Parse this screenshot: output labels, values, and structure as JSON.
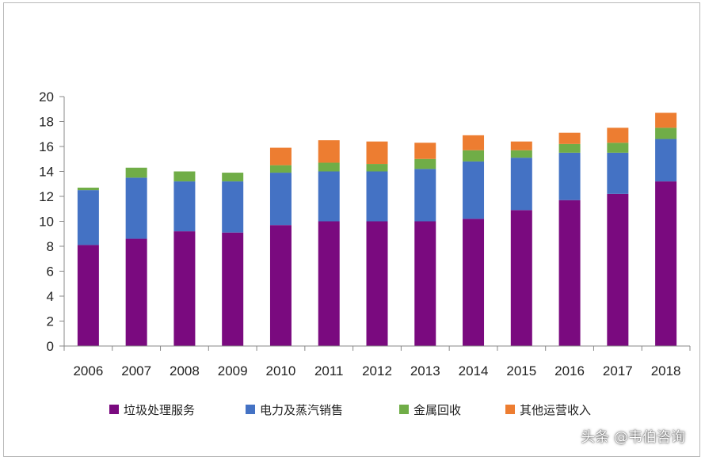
{
  "chart_data": {
    "type": "bar",
    "stacked": true,
    "categories": [
      "2006",
      "2007",
      "2008",
      "2009",
      "2010",
      "2011",
      "2012",
      "2013",
      "2014",
      "2015",
      "2016",
      "2017",
      "2018"
    ],
    "series": [
      {
        "name": "垃圾处理服务",
        "color": "#7a0a7f",
        "values": [
          8.1,
          8.6,
          9.2,
          9.1,
          9.7,
          10.0,
          10.0,
          10.0,
          10.2,
          10.9,
          11.7,
          12.2,
          13.2
        ]
      },
      {
        "name": "电力及蒸汽销售",
        "color": "#4472c4",
        "values": [
          4.4,
          4.9,
          4.0,
          4.1,
          4.2,
          4.0,
          4.0,
          4.2,
          4.6,
          4.2,
          3.8,
          3.3,
          3.4
        ]
      },
      {
        "name": "金属回收",
        "color": "#70ad47",
        "values": [
          0.2,
          0.8,
          0.8,
          0.7,
          0.6,
          0.7,
          0.6,
          0.8,
          0.9,
          0.6,
          0.7,
          0.8,
          0.9
        ]
      },
      {
        "name": "其他运营收入",
        "color": "#ed7d31",
        "values": [
          0.0,
          0.0,
          0.0,
          0.0,
          1.4,
          1.8,
          1.8,
          1.3,
          1.2,
          0.7,
          0.9,
          1.2,
          1.2
        ]
      }
    ],
    "ylim": [
      0,
      20
    ],
    "yticks": [
      "0",
      "2",
      "4",
      "6",
      "8",
      "10",
      "12",
      "14",
      "16",
      "18",
      "20"
    ],
    "ytick_values": [
      0,
      2,
      4,
      6,
      8,
      10,
      12,
      14,
      16,
      18,
      20
    ],
    "legend_position": "bottom",
    "grid": false
  },
  "watermark": "头条 @韦伯咨询"
}
